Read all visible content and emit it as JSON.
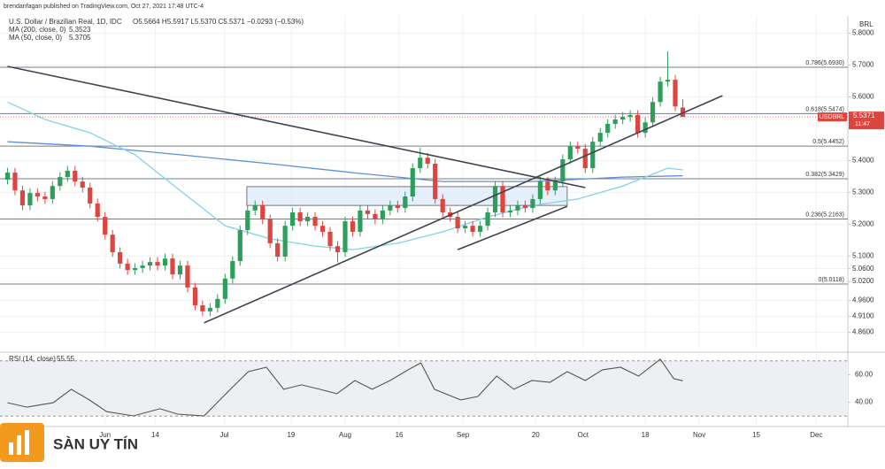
{
  "chart_data": [
    {
      "type": "candlestick",
      "published": "brendanfagan published on TradingView.com, Oct 27, 2021 17:48 UTC-4",
      "title": "U.S. Dollar / Brazilian Real, 1D, IDC",
      "header_values": "O5.5664 H5.5917 L5.5370 C5.5371 −0.0293 (−0.53%)",
      "currency": "BRL",
      "symbol": "USDBRL",
      "countdown": "11:47",
      "up_color": "#2e9e5b",
      "down_color": "#e0443e",
      "grid": true,
      "xlim": [
        -1,
        112
      ],
      "xticks": [
        {
          "value": 13,
          "label": "Jun"
        },
        {
          "value": 19.7,
          "label": "14"
        },
        {
          "value": 28.9,
          "label": "Jul"
        },
        {
          "value": 37.8,
          "label": "19"
        },
        {
          "value": 45,
          "label": "Aug"
        },
        {
          "value": 52.2,
          "label": "16"
        },
        {
          "value": 60.7,
          "label": "Sep"
        },
        {
          "value": 70.4,
          "label": "20"
        },
        {
          "value": 76.7,
          "label": "Oct"
        },
        {
          "value": 85,
          "label": "18"
        },
        {
          "value": 92.2,
          "label": "Nov"
        },
        {
          "value": 99.8,
          "label": "15"
        },
        {
          "value": 107.8,
          "label": "Dec"
        }
      ],
      "ylim": [
        4.806,
        5.835
      ],
      "yticks": [
        {
          "value": 5.8,
          "label": "5.8000"
        },
        {
          "value": 5.7,
          "label": "5.7000"
        },
        {
          "value": 5.6,
          "label": "5.6000"
        },
        {
          "value": 5.4,
          "label": "5.4000"
        },
        {
          "value": 5.3,
          "label": "5.3000"
        },
        {
          "value": 5.2,
          "label": "5.2000"
        },
        {
          "value": 5.1,
          "label": "5.1000"
        },
        {
          "value": 5.06,
          "label": "5.0600"
        },
        {
          "value": 5.02,
          "label": "5.0200"
        },
        {
          "value": 4.96,
          "label": "4.9600"
        },
        {
          "value": 4.91,
          "label": "4.9100"
        },
        {
          "value": 4.86,
          "label": "4.8600"
        }
      ],
      "open": [
        5.34,
        5.362,
        5.306,
        5.259,
        5.298,
        5.287,
        5.279,
        5.32,
        5.348,
        5.368,
        5.334,
        5.315,
        5.265,
        5.223,
        5.167,
        5.112,
        5.076,
        5.056,
        5.062,
        5.07,
        5.081,
        5.07,
        5.092,
        5.042,
        5.07,
        5.001,
        4.945,
        4.926,
        4.937,
        4.965,
        5.029,
        5.084,
        5.181,
        5.243,
        5.259,
        5.215,
        5.14,
        5.098,
        5.195,
        5.237,
        5.209,
        5.223,
        5.195,
        5.176,
        5.131,
        5.112,
        5.209,
        5.176,
        5.243,
        5.232,
        5.215,
        5.243,
        5.259,
        5.251,
        5.287,
        5.376,
        5.409,
        5.39,
        5.279,
        5.237,
        5.223,
        5.187,
        5.195,
        5.176,
        5.195,
        5.237,
        5.32,
        5.237,
        5.243,
        5.259,
        5.251,
        5.279,
        5.334,
        5.306,
        5.334,
        5.404,
        5.445,
        5.437,
        5.376,
        5.459,
        5.487,
        5.515,
        5.529,
        5.537,
        5.543,
        5.487,
        5.52,
        5.584,
        5.648,
        5.654,
        5.5664
      ],
      "high": [
        5.377,
        5.377,
        5.321,
        5.313,
        5.313,
        5.302,
        5.335,
        5.363,
        5.383,
        5.383,
        5.349,
        5.33,
        5.28,
        5.238,
        5.182,
        5.127,
        5.091,
        5.077,
        5.085,
        5.096,
        5.096,
        5.107,
        5.107,
        5.085,
        5.085,
        5.016,
        4.96,
        4.952,
        4.98,
        5.044,
        5.099,
        5.196,
        5.258,
        5.274,
        5.274,
        5.23,
        5.155,
        5.21,
        5.252,
        5.252,
        5.238,
        5.238,
        5.21,
        5.191,
        5.146,
        5.224,
        5.224,
        5.258,
        5.258,
        5.247,
        5.258,
        5.274,
        5.274,
        5.302,
        5.391,
        5.44,
        5.424,
        5.405,
        5.294,
        5.252,
        5.238,
        5.21,
        5.21,
        5.21,
        5.252,
        5.335,
        5.335,
        5.258,
        5.274,
        5.274,
        5.294,
        5.349,
        5.349,
        5.349,
        5.419,
        5.46,
        5.46,
        5.452,
        5.474,
        5.502,
        5.53,
        5.544,
        5.552,
        5.558,
        5.558,
        5.535,
        5.599,
        5.663,
        5.743,
        5.669,
        5.5917
      ],
      "low": [
        5.325,
        5.291,
        5.244,
        5.244,
        5.272,
        5.264,
        5.264,
        5.305,
        5.333,
        5.319,
        5.3,
        5.25,
        5.208,
        5.152,
        5.097,
        5.061,
        5.041,
        5.041,
        5.047,
        5.055,
        5.055,
        5.055,
        5.027,
        5.027,
        4.986,
        4.93,
        4.911,
        4.911,
        4.922,
        4.95,
        5.014,
        5.069,
        5.166,
        5.228,
        5.2,
        5.125,
        5.083,
        5.083,
        5.18,
        5.194,
        5.194,
        5.18,
        5.161,
        5.116,
        5.08,
        5.097,
        5.161,
        5.161,
        5.217,
        5.2,
        5.2,
        5.228,
        5.236,
        5.236,
        5.272,
        5.361,
        5.375,
        5.264,
        5.222,
        5.208,
        5.172,
        5.172,
        5.161,
        5.161,
        5.18,
        5.222,
        5.222,
        5.222,
        5.228,
        5.236,
        5.236,
        5.264,
        5.291,
        5.291,
        5.319,
        5.389,
        5.422,
        5.361,
        5.361,
        5.444,
        5.472,
        5.5,
        5.514,
        5.522,
        5.472,
        5.472,
        5.505,
        5.569,
        5.633,
        5.555,
        5.537
      ],
      "close": [
        5.362,
        5.306,
        5.259,
        5.298,
        5.287,
        5.279,
        5.32,
        5.348,
        5.368,
        5.334,
        5.315,
        5.265,
        5.223,
        5.167,
        5.112,
        5.076,
        5.056,
        5.062,
        5.07,
        5.081,
        5.07,
        5.092,
        5.042,
        5.07,
        5.001,
        4.945,
        4.926,
        4.937,
        4.965,
        5.029,
        5.084,
        5.181,
        5.243,
        5.259,
        5.215,
        5.14,
        5.098,
        5.195,
        5.237,
        5.209,
        5.223,
        5.195,
        5.176,
        5.131,
        5.112,
        5.209,
        5.176,
        5.243,
        5.232,
        5.215,
        5.243,
        5.259,
        5.251,
        5.287,
        5.376,
        5.409,
        5.39,
        5.279,
        5.237,
        5.223,
        5.187,
        5.195,
        5.176,
        5.195,
        5.237,
        5.32,
        5.237,
        5.243,
        5.259,
        5.251,
        5.279,
        5.334,
        5.306,
        5.334,
        5.404,
        5.445,
        5.437,
        5.376,
        5.459,
        5.487,
        5.515,
        5.529,
        5.537,
        5.543,
        5.487,
        5.52,
        5.584,
        5.648,
        5.654,
        5.57,
        5.5371
      ],
      "ma": [
        {
          "name": "MA (200, close, 0)",
          "color": "#5b8fd6",
          "x": [
            0,
            11,
            23,
            35,
            46,
            58,
            70,
            82,
            90
          ],
          "values": [
            5.459,
            5.445,
            5.418,
            5.39,
            5.362,
            5.334,
            5.334,
            5.348,
            5.3523
          ]
        },
        {
          "name": "MA (50, close, 0)",
          "color": "#7fd3ea",
          "x": [
            0,
            5,
            11,
            17,
            23,
            29,
            35,
            41,
            46,
            52,
            58,
            64,
            70,
            76,
            82,
            88,
            90
          ],
          "values": [
            5.584,
            5.529,
            5.487,
            5.418,
            5.306,
            5.195,
            5.154,
            5.131,
            5.12,
            5.14,
            5.176,
            5.223,
            5.259,
            5.279,
            5.32,
            5.376,
            5.3705
          ]
        }
      ],
      "fib": [
        {
          "label": "0.786(5.6930)",
          "value": 5.693
        },
        {
          "label": "0.618(5.5474)",
          "value": 5.5474
        },
        {
          "label": "0.5(5.4452)",
          "value": 5.4452
        },
        {
          "label": "0.382(5.3429)",
          "value": 5.3429
        },
        {
          "label": "0.236(5.2163)",
          "value": 5.2163
        },
        {
          "label": "0(5.0118)",
          "value": 5.0118
        }
      ],
      "trendlines": [
        {
          "x": [
            0,
            77
          ],
          "values": [
            5.696,
            5.315
          ]
        },
        {
          "x": [
            26.2,
            95.3
          ],
          "values": [
            4.89,
            5.604
          ]
        },
        {
          "x": [
            60,
            74.6
          ],
          "values": [
            5.12,
            5.256
          ]
        }
      ],
      "zone": {
        "x": [
          31.9,
          74.6
        ],
        "values": [
          5.259,
          5.318
        ]
      }
    },
    {
      "type": "line",
      "series": [
        {
          "name": "RSI (14, close)",
          "color": "#555555",
          "x": [
            0,
            2.6,
            6.1,
            8.5,
            10.9,
            13.2,
            16.8,
            20.3,
            22.7,
            26.2,
            29.7,
            32.1,
            34.5,
            36.8,
            39.2,
            41.6,
            43.9,
            46.3,
            48.6,
            51,
            53.4,
            55.1,
            56.9,
            60.4,
            62.7,
            65.2,
            67.5,
            69.9,
            72.3,
            74.6,
            77,
            79.3,
            81.7,
            84.1,
            87,
            88.8,
            90
          ],
          "values": [
            39.7,
            36.5,
            39.7,
            49.4,
            41.7,
            33.3,
            30.1,
            35.3,
            31.4,
            30.1,
            49.4,
            62.2,
            65.4,
            49.4,
            52.6,
            49.4,
            46.2,
            55.8,
            49.4,
            55.8,
            63.5,
            68.6,
            49.4,
            41.7,
            44.2,
            59.0,
            49.4,
            55.8,
            54.5,
            62.2,
            55.8,
            63.5,
            65.4,
            59.0,
            71.2,
            57.1,
            55.55
          ]
        }
      ],
      "band": [
        30,
        70
      ],
      "ylim": [
        25,
        75
      ],
      "yticks": [
        {
          "value": 60,
          "label": "60.00"
        },
        {
          "value": 40,
          "label": "40.00"
        }
      ]
    }
  ],
  "watermark": "SÀN UY TÍN"
}
